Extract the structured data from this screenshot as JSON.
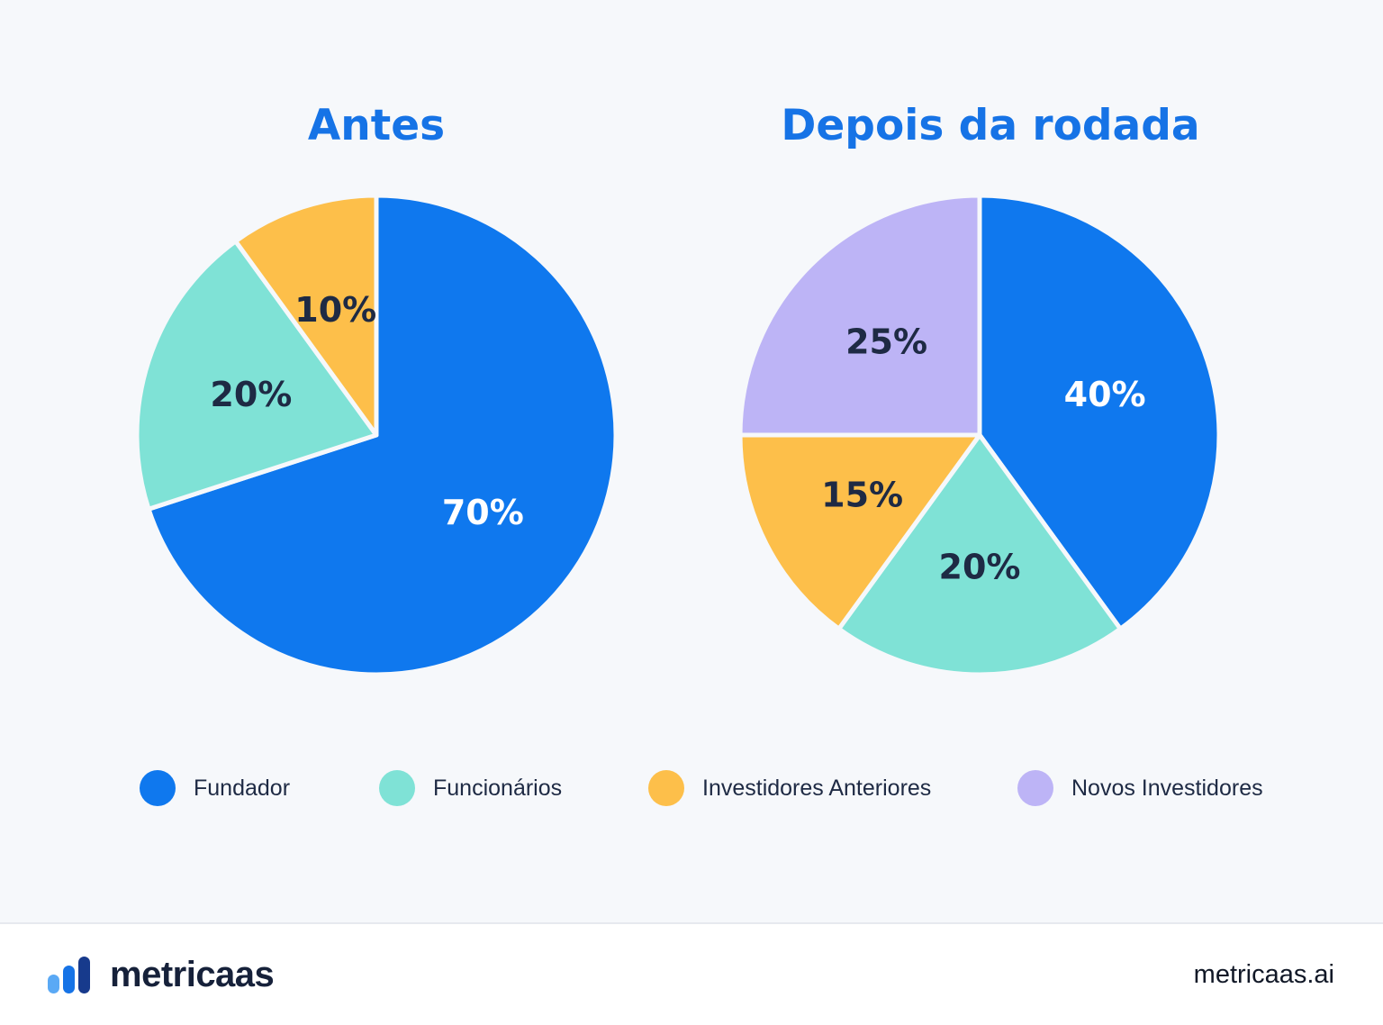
{
  "chart_data": [
    {
      "type": "pie",
      "title": "Antes",
      "slices": [
        {
          "name": "Fundador",
          "value": 70,
          "label": "70%",
          "color": "#0f78ee",
          "label_color": "#ffffff"
        },
        {
          "name": "Funcionários",
          "value": 20,
          "label": "20%",
          "color": "#7fe2d6",
          "label_color": "#1e2a44"
        },
        {
          "name": "Investidores Anteriores",
          "value": 10,
          "label": "10%",
          "color": "#fdbf4a",
          "label_color": "#1e2a44"
        }
      ]
    },
    {
      "type": "pie",
      "title": "Depois da rodada",
      "slices": [
        {
          "name": "Fundador",
          "value": 40,
          "label": "40%",
          "color": "#0f78ee",
          "label_color": "#ffffff"
        },
        {
          "name": "Funcionários",
          "value": 20,
          "label": "20%",
          "color": "#7fe2d6",
          "label_color": "#1e2a44"
        },
        {
          "name": "Investidores Anteriores",
          "value": 15,
          "label": "15%",
          "color": "#fdbf4a",
          "label_color": "#1e2a44"
        },
        {
          "name": "Novos Investidores",
          "value": 25,
          "label": "25%",
          "color": "#bdb4f6",
          "label_color": "#1e2a44"
        }
      ]
    }
  ],
  "legend": [
    {
      "label": "Fundador",
      "color": "#0f78ee"
    },
    {
      "label": "Funcionários",
      "color": "#7fe2d6"
    },
    {
      "label": "Investidores Anteriores",
      "color": "#fdbf4a"
    },
    {
      "label": "Novos Investidores",
      "color": "#bdb4f6"
    }
  ],
  "footer": {
    "brand": "metricaas",
    "brand_icon": "bar-chart-logo-icon",
    "site": "metricaas.ai"
  }
}
